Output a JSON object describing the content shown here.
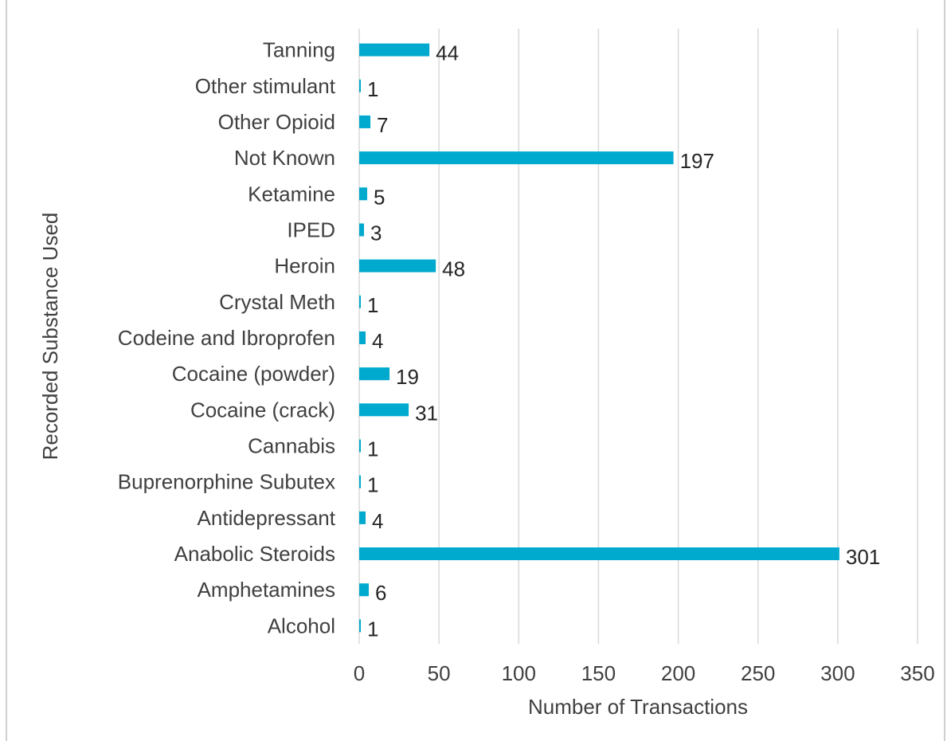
{
  "chart_data": {
    "type": "bar",
    "orientation": "horizontal",
    "categories": [
      "Tanning",
      "Other stimulant",
      "Other Opioid",
      "Not Known",
      "Ketamine",
      "IPED",
      "Heroin",
      "Crystal Meth",
      "Codeine and Ibroprofen",
      "Cocaine (powder)",
      "Cocaine (crack)",
      "Cannabis",
      "Buprenorphine Subutex",
      "Antidepressant",
      "Anabolic Steroids",
      "Amphetamines",
      "Alcohol"
    ],
    "values": [
      44,
      1,
      7,
      197,
      5,
      3,
      48,
      1,
      4,
      19,
      31,
      1,
      1,
      4,
      301,
      6,
      1
    ],
    "xlabel": "Number of Transactions",
    "ylabel": "Recorded Substance Used",
    "xlim": [
      0,
      350
    ],
    "xticks": [
      "0",
      "50",
      "100",
      "150",
      "200",
      "250",
      "300",
      "350"
    ],
    "grid": "vertical",
    "bar_color": "#00A9CE",
    "grid_color": "#D9D9D9"
  }
}
